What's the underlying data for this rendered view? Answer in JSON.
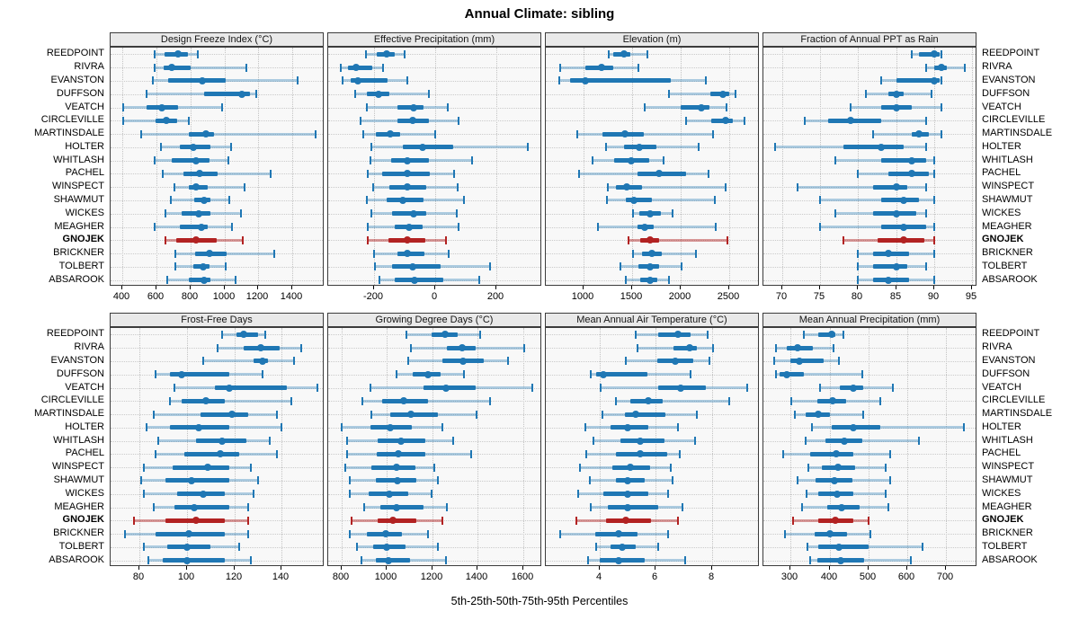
{
  "title": "Annual Climate: sibling",
  "caption": "5th-25th-50th-75th-95th Percentiles",
  "highlight_station": "GNOJEK",
  "stations": [
    "REEDPOINT",
    "RIVRA",
    "EVANSTON",
    "DUFFSON",
    "VEATCH",
    "CIRCLEVILLE",
    "MARTINSDALE",
    "HOLTER",
    "WHITLASH",
    "PACHEL",
    "WINSPECT",
    "SHAWMUT",
    "WICKES",
    "MEAGHER",
    "GNOJEK",
    "BRICKNER",
    "TOLBERT",
    "ABSAROOK"
  ],
  "colors": {
    "series_blue": "#1f77b4",
    "series_blue_light": "rgba(31,119,180,0.35)",
    "highlight_red": "#b22222",
    "highlight_red_light": "rgba(178,34,34,0.45)",
    "panel_bg": "#f8f8f8",
    "header_bg": "#e9e9e9",
    "grid_line": "#c6c6c6",
    "border": "#3c3c3c"
  },
  "chart_data": {
    "type": "percentile-dotplot",
    "orientation": "horizontal",
    "percentile_levels": [
      5,
      25,
      50,
      75,
      95
    ],
    "grid_layout": "2x4",
    "panels": [
      {
        "title": "Design Freeze Index (°C)",
        "xlim": [
          330,
          1590
        ],
        "ticks": [
          400,
          600,
          800,
          1000,
          1200,
          1400
        ],
        "values": [
          [
            590,
            650,
            725,
            785,
            845
          ],
          [
            590,
            640,
            690,
            800,
            1130
          ],
          [
            580,
            670,
            870,
            1010,
            1430
          ],
          [
            540,
            880,
            1105,
            1150,
            1190
          ],
          [
            405,
            540,
            630,
            725,
            985
          ],
          [
            405,
            595,
            660,
            720,
            790
          ],
          [
            510,
            790,
            890,
            940,
            1535
          ],
          [
            625,
            735,
            815,
            915,
            1040
          ],
          [
            590,
            690,
            835,
            910,
            1025
          ],
          [
            635,
            760,
            855,
            960,
            1270
          ],
          [
            705,
            790,
            835,
            900,
            1120
          ],
          [
            685,
            820,
            880,
            920,
            1030
          ],
          [
            655,
            750,
            850,
            920,
            1095
          ],
          [
            590,
            735,
            865,
            900,
            1045
          ],
          [
            655,
            715,
            835,
            955,
            1110
          ],
          [
            710,
            825,
            910,
            1015,
            1295
          ],
          [
            710,
            815,
            875,
            915,
            1005
          ],
          [
            665,
            790,
            880,
            920,
            1065
          ]
        ]
      },
      {
        "title": "Effective Precipitation (mm)",
        "xlim": [
          -350,
          350
        ],
        "ticks": [
          -200,
          0,
          200
        ],
        "values": [
          [
            -226,
            -191,
            -159,
            -133,
            -99
          ],
          [
            -308,
            -284,
            -260,
            -207,
            -171
          ],
          [
            -303,
            -277,
            -253,
            -157,
            -90
          ],
          [
            -261,
            -224,
            -186,
            -149,
            -22
          ],
          [
            -224,
            -123,
            -72,
            -37,
            40
          ],
          [
            -245,
            -125,
            -75,
            -22,
            77
          ],
          [
            -236,
            -193,
            -147,
            -114,
            -1
          ],
          [
            -210,
            -107,
            -40,
            60,
            302
          ],
          [
            -212,
            -145,
            -90,
            -20,
            120
          ],
          [
            -222,
            -173,
            -91,
            -17,
            62
          ],
          [
            -203,
            -149,
            -90,
            -30,
            74
          ],
          [
            -224,
            -159,
            -107,
            -37,
            95
          ],
          [
            -210,
            -142,
            -72,
            -30,
            71
          ],
          [
            -222,
            -133,
            -85,
            -40,
            77
          ],
          [
            -221,
            -152,
            -90,
            -32,
            36
          ],
          [
            -200,
            -123,
            -90,
            -35,
            43
          ],
          [
            -197,
            -140,
            -75,
            19,
            178
          ],
          [
            -181,
            -131,
            -68,
            26,
            143
          ]
        ]
      },
      {
        "title": "Elevation (m)",
        "xlim": [
          610,
          2810
        ],
        "ticks": [
          1000,
          1500,
          2000,
          2500
        ],
        "values": [
          [
            1255,
            1305,
            1415,
            1475,
            1650
          ],
          [
            755,
            1015,
            1180,
            1305,
            1565
          ],
          [
            745,
            855,
            1015,
            1895,
            2255
          ],
          [
            1875,
            2300,
            2435,
            2495,
            2565
          ],
          [
            1630,
            2000,
            2205,
            2295,
            2470
          ],
          [
            2055,
            2310,
            2455,
            2530,
            2650
          ],
          [
            935,
            1195,
            1420,
            1615,
            2325
          ],
          [
            1225,
            1415,
            1570,
            1745,
            2185
          ],
          [
            1095,
            1315,
            1490,
            1670,
            1820
          ],
          [
            950,
            1555,
            1775,
            2050,
            2280
          ],
          [
            1245,
            1330,
            1445,
            1595,
            2460
          ],
          [
            1235,
            1430,
            1520,
            1700,
            2345
          ],
          [
            1510,
            1570,
            1680,
            1790,
            1915
          ],
          [
            1145,
            1550,
            1630,
            1715,
            2360
          ],
          [
            1460,
            1580,
            1685,
            1775,
            2475
          ],
          [
            1510,
            1600,
            1700,
            1805,
            2150
          ],
          [
            1375,
            1565,
            1685,
            1775,
            2005
          ],
          [
            1435,
            1585,
            1685,
            1755,
            1875
          ]
        ]
      },
      {
        "title": "Fraction of Annual PPT as Rain",
        "xlim": [
          67.5,
          95.7
        ],
        "ticks": [
          70,
          75,
          80,
          85,
          90,
          95
        ],
        "values": [
          [
            87,
            88,
            90,
            90.7,
            91
          ],
          [
            89,
            90,
            91,
            91.7,
            94
          ],
          [
            83,
            85,
            90,
            90.7,
            91
          ],
          [
            81,
            84,
            85,
            86,
            89.7
          ],
          [
            79,
            83,
            85,
            87,
            91
          ],
          [
            73,
            76,
            79,
            83,
            89
          ],
          [
            82,
            87,
            88,
            89.3,
            91
          ],
          [
            69,
            78,
            83,
            86,
            89
          ],
          [
            77,
            83,
            87,
            89,
            90
          ],
          [
            80,
            84,
            87,
            89.3,
            90
          ],
          [
            72,
            82,
            85,
            86.5,
            89
          ],
          [
            75,
            83,
            86,
            88,
            90
          ],
          [
            77,
            82,
            85,
            87.6,
            89
          ],
          [
            75,
            83,
            86,
            89,
            90
          ],
          [
            78,
            82.6,
            86,
            88.7,
            90
          ],
          [
            80,
            82,
            84,
            86.7,
            90
          ],
          [
            80,
            82,
            85,
            86.5,
            89
          ],
          [
            80,
            82,
            84,
            86.7,
            90
          ]
        ]
      },
      {
        "title": "Frost-Free Days",
        "xlim": [
          68,
          158
        ],
        "ticks": [
          80,
          100,
          120,
          140
        ],
        "values": [
          [
            115,
            121,
            124,
            130,
            133
          ],
          [
            113,
            124,
            131,
            139,
            148
          ],
          [
            107,
            128,
            132,
            134,
            145
          ],
          [
            87,
            93,
            98,
            118,
            132
          ],
          [
            95,
            112,
            118,
            142,
            155
          ],
          [
            93,
            98,
            108,
            116,
            144
          ],
          [
            86,
            106,
            119,
            126,
            138
          ],
          [
            83,
            93,
            105,
            118,
            140
          ],
          [
            88,
            104,
            115,
            125,
            135
          ],
          [
            87,
            99,
            114,
            122,
            138
          ],
          [
            82,
            94,
            109,
            118,
            127
          ],
          [
            81,
            91,
            102,
            118,
            130
          ],
          [
            82,
            96,
            107,
            116,
            128
          ],
          [
            86,
            95,
            103,
            118,
            126
          ],
          [
            78,
            91,
            104,
            116,
            126
          ],
          [
            74,
            87,
            101,
            116,
            126
          ],
          [
            82,
            92,
            100,
            110,
            122
          ],
          [
            84,
            90,
            100,
            116,
            127
          ]
        ]
      },
      {
        "title": "Growing Degree Days (°C)",
        "xlim": [
          740,
          1685
        ],
        "ticks": [
          800,
          1000,
          1200,
          1400,
          1600
        ],
        "values": [
          [
            1085,
            1195,
            1255,
            1310,
            1410
          ],
          [
            1105,
            1265,
            1330,
            1390,
            1605
          ],
          [
            1095,
            1245,
            1335,
            1425,
            1535
          ],
          [
            1040,
            1115,
            1180,
            1235,
            1340
          ],
          [
            925,
            1160,
            1260,
            1390,
            1640
          ],
          [
            890,
            980,
            1075,
            1180,
            1455
          ],
          [
            930,
            1015,
            1105,
            1225,
            1395
          ],
          [
            800,
            925,
            1015,
            1110,
            1245
          ],
          [
            825,
            960,
            1060,
            1170,
            1290
          ],
          [
            825,
            955,
            1050,
            1170,
            1370
          ],
          [
            815,
            930,
            1040,
            1125,
            1210
          ],
          [
            835,
            950,
            1045,
            1130,
            1225
          ],
          [
            835,
            920,
            1010,
            1095,
            1195
          ],
          [
            900,
            970,
            1040,
            1160,
            1265
          ],
          [
            845,
            958,
            1025,
            1130,
            1245
          ],
          [
            835,
            910,
            995,
            1065,
            1180
          ],
          [
            866,
            940,
            1000,
            1080,
            1225
          ],
          [
            885,
            950,
            1005,
            1100,
            1260
          ]
        ]
      },
      {
        "title": "Mean Annual Air Temperature (°C)",
        "xlim": [
          2.1,
          9.7
        ],
        "ticks": [
          4,
          6,
          8
        ],
        "values": [
          [
            5.3,
            6.1,
            6.8,
            7.25,
            7.85
          ],
          [
            5.35,
            6.65,
            7.2,
            7.45,
            8.05
          ],
          [
            4.95,
            6.05,
            6.7,
            7.35,
            7.9
          ],
          [
            3.7,
            3.9,
            4.15,
            5.7,
            7.25
          ],
          [
            4.05,
            6.1,
            6.9,
            7.8,
            9.25
          ],
          [
            4.6,
            5.1,
            5.75,
            6.25,
            8.6
          ],
          [
            4.1,
            4.9,
            5.3,
            6.35,
            7.45
          ],
          [
            3.5,
            4.4,
            5.0,
            5.75,
            6.8
          ],
          [
            3.8,
            4.75,
            5.45,
            6.3,
            7.4
          ],
          [
            3.55,
            4.6,
            5.45,
            6.4,
            6.85
          ],
          [
            3.3,
            4.45,
            5.1,
            5.8,
            6.55
          ],
          [
            3.65,
            4.6,
            5.0,
            5.6,
            6.6
          ],
          [
            3.25,
            4.15,
            5.0,
            5.75,
            6.45
          ],
          [
            3.7,
            4.3,
            5.0,
            6.1,
            6.95
          ],
          [
            3.2,
            4.25,
            4.95,
            5.85,
            6.8
          ],
          [
            2.6,
            3.85,
            4.7,
            5.35,
            6.45
          ],
          [
            3.9,
            4.4,
            4.8,
            5.3,
            6.1
          ],
          [
            3.6,
            4.0,
            4.7,
            5.6,
            7.05
          ]
        ]
      },
      {
        "title": "Mean Annual Precipitation (mm)",
        "xlim": [
          230,
          780
        ],
        "ticks": [
          300,
          400,
          500,
          600,
          700
        ],
        "values": [
          [
            335,
            370,
            405,
            415,
            435
          ],
          [
            262,
            290,
            317,
            358,
            410
          ],
          [
            258,
            300,
            323,
            384,
            424
          ],
          [
            262,
            272,
            290,
            333,
            485
          ],
          [
            376,
            427,
            460,
            486,
            562
          ],
          [
            302,
            368,
            408,
            442,
            530
          ],
          [
            310,
            338,
            370,
            400,
            486
          ],
          [
            355,
            405,
            460,
            530,
            745
          ],
          [
            338,
            389,
            439,
            485,
            630
          ],
          [
            280,
            350,
            418,
            460,
            555
          ],
          [
            345,
            380,
            422,
            465,
            545
          ],
          [
            318,
            365,
            412,
            458,
            555
          ],
          [
            340,
            372,
            420,
            460,
            545
          ],
          [
            330,
            395,
            430,
            478,
            552
          ],
          [
            306,
            371,
            414,
            460,
            500
          ],
          [
            285,
            362,
            402,
            445,
            505
          ],
          [
            343,
            372,
            425,
            500,
            640
          ],
          [
            350,
            368,
            428,
            490,
            610
          ]
        ]
      }
    ]
  }
}
